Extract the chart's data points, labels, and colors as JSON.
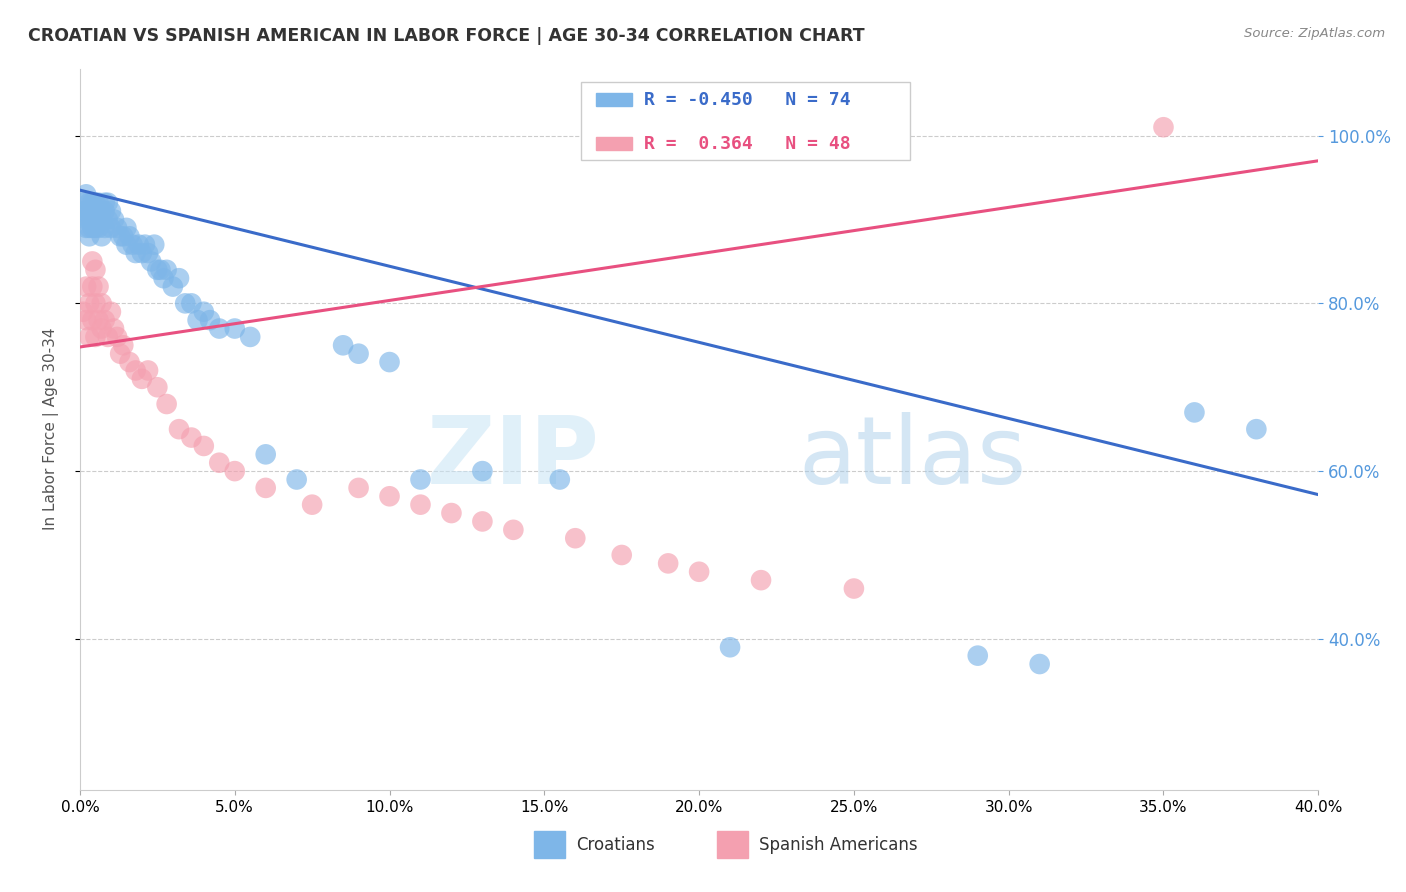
{
  "title": "CROATIAN VS SPANISH AMERICAN IN LABOR FORCE | AGE 30-34 CORRELATION CHART",
  "source": "Source: ZipAtlas.com",
  "ylabel": "In Labor Force | Age 30-34",
  "xlim": [
    0.0,
    0.4
  ],
  "ylim": [
    0.22,
    1.08
  ],
  "xticks": [
    0.0,
    0.05,
    0.1,
    0.15,
    0.2,
    0.25,
    0.3,
    0.35,
    0.4
  ],
  "yticks": [
    0.4,
    0.6,
    0.8,
    1.0
  ],
  "legend_blue_label": "Croatians",
  "legend_pink_label": "Spanish Americans",
  "blue_R": -0.45,
  "blue_N": 74,
  "pink_R": 0.364,
  "pink_N": 48,
  "blue_color": "#7EB6E8",
  "pink_color": "#F4A0B0",
  "blue_line_color": "#3A6BC9",
  "pink_line_color": "#E85080",
  "watermark_zip": "ZIP",
  "watermark_atlas": "atlas",
  "background_color": "#FFFFFF",
  "grid_color": "#CCCCCC",
  "title_color": "#333333",
  "right_tick_color": "#5599DD",
  "blue_x": [
    0.001,
    0.001,
    0.002,
    0.002,
    0.002,
    0.002,
    0.003,
    0.003,
    0.003,
    0.003,
    0.003,
    0.004,
    0.004,
    0.004,
    0.004,
    0.005,
    0.005,
    0.005,
    0.005,
    0.006,
    0.006,
    0.006,
    0.007,
    0.007,
    0.007,
    0.008,
    0.008,
    0.008,
    0.009,
    0.009,
    0.01,
    0.01,
    0.011,
    0.012,
    0.013,
    0.014,
    0.015,
    0.015,
    0.016,
    0.017,
    0.018,
    0.019,
    0.02,
    0.021,
    0.022,
    0.023,
    0.024,
    0.025,
    0.026,
    0.027,
    0.028,
    0.03,
    0.032,
    0.034,
    0.036,
    0.038,
    0.04,
    0.042,
    0.045,
    0.05,
    0.055,
    0.06,
    0.07,
    0.085,
    0.09,
    0.1,
    0.11,
    0.13,
    0.155,
    0.21,
    0.29,
    0.31,
    0.36,
    0.38
  ],
  "blue_y": [
    0.92,
    0.91,
    0.93,
    0.91,
    0.9,
    0.89,
    0.92,
    0.91,
    0.9,
    0.89,
    0.88,
    0.92,
    0.91,
    0.9,
    0.89,
    0.92,
    0.91,
    0.9,
    0.89,
    0.92,
    0.9,
    0.89,
    0.91,
    0.9,
    0.88,
    0.92,
    0.91,
    0.89,
    0.92,
    0.9,
    0.91,
    0.89,
    0.9,
    0.89,
    0.88,
    0.88,
    0.89,
    0.87,
    0.88,
    0.87,
    0.86,
    0.87,
    0.86,
    0.87,
    0.86,
    0.85,
    0.87,
    0.84,
    0.84,
    0.83,
    0.84,
    0.82,
    0.83,
    0.8,
    0.8,
    0.78,
    0.79,
    0.78,
    0.77,
    0.77,
    0.76,
    0.62,
    0.59,
    0.75,
    0.74,
    0.73,
    0.59,
    0.6,
    0.59,
    0.39,
    0.38,
    0.37,
    0.67,
    0.65
  ],
  "pink_x": [
    0.001,
    0.002,
    0.002,
    0.003,
    0.003,
    0.004,
    0.004,
    0.004,
    0.005,
    0.005,
    0.005,
    0.006,
    0.006,
    0.007,
    0.007,
    0.008,
    0.009,
    0.01,
    0.011,
    0.012,
    0.013,
    0.014,
    0.016,
    0.018,
    0.02,
    0.022,
    0.025,
    0.028,
    0.032,
    0.036,
    0.04,
    0.045,
    0.05,
    0.06,
    0.075,
    0.09,
    0.1,
    0.11,
    0.12,
    0.13,
    0.14,
    0.16,
    0.175,
    0.19,
    0.2,
    0.22,
    0.25,
    0.35
  ],
  "pink_y": [
    0.79,
    0.82,
    0.78,
    0.8,
    0.76,
    0.85,
    0.82,
    0.78,
    0.84,
    0.8,
    0.76,
    0.82,
    0.78,
    0.8,
    0.77,
    0.78,
    0.76,
    0.79,
    0.77,
    0.76,
    0.74,
    0.75,
    0.73,
    0.72,
    0.71,
    0.72,
    0.7,
    0.68,
    0.65,
    0.64,
    0.63,
    0.61,
    0.6,
    0.58,
    0.56,
    0.58,
    0.57,
    0.56,
    0.55,
    0.54,
    0.53,
    0.52,
    0.5,
    0.49,
    0.48,
    0.47,
    0.46,
    1.01
  ]
}
